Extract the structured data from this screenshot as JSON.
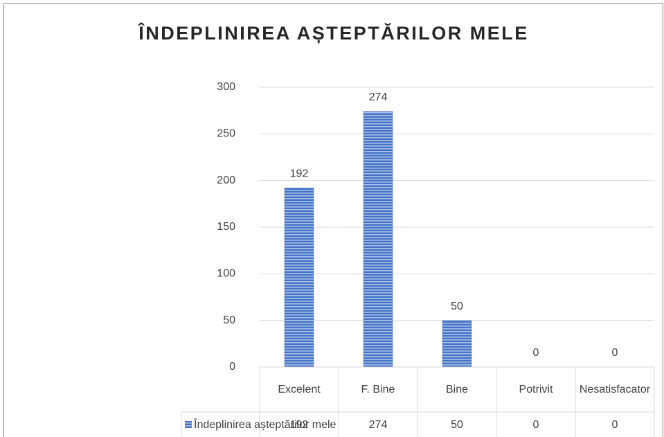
{
  "chart_data": {
    "type": "bar",
    "title": "ÎNDEPLINIREA AȘTEPTĂRILOR MELE",
    "categories": [
      "Excelent",
      "F. Bine",
      "Bine",
      "Potrivit",
      "Nesatisfacator"
    ],
    "series": [
      {
        "name": "Îndeplinirea așteptărilor mele",
        "color": "#4472c4",
        "values": [
          192,
          274,
          50,
          0,
          0
        ]
      }
    ],
    "ylim": [
      0,
      300
    ],
    "yticks": [
      0,
      50,
      100,
      150,
      200,
      250,
      300
    ],
    "grid": true,
    "data_table": true
  }
}
